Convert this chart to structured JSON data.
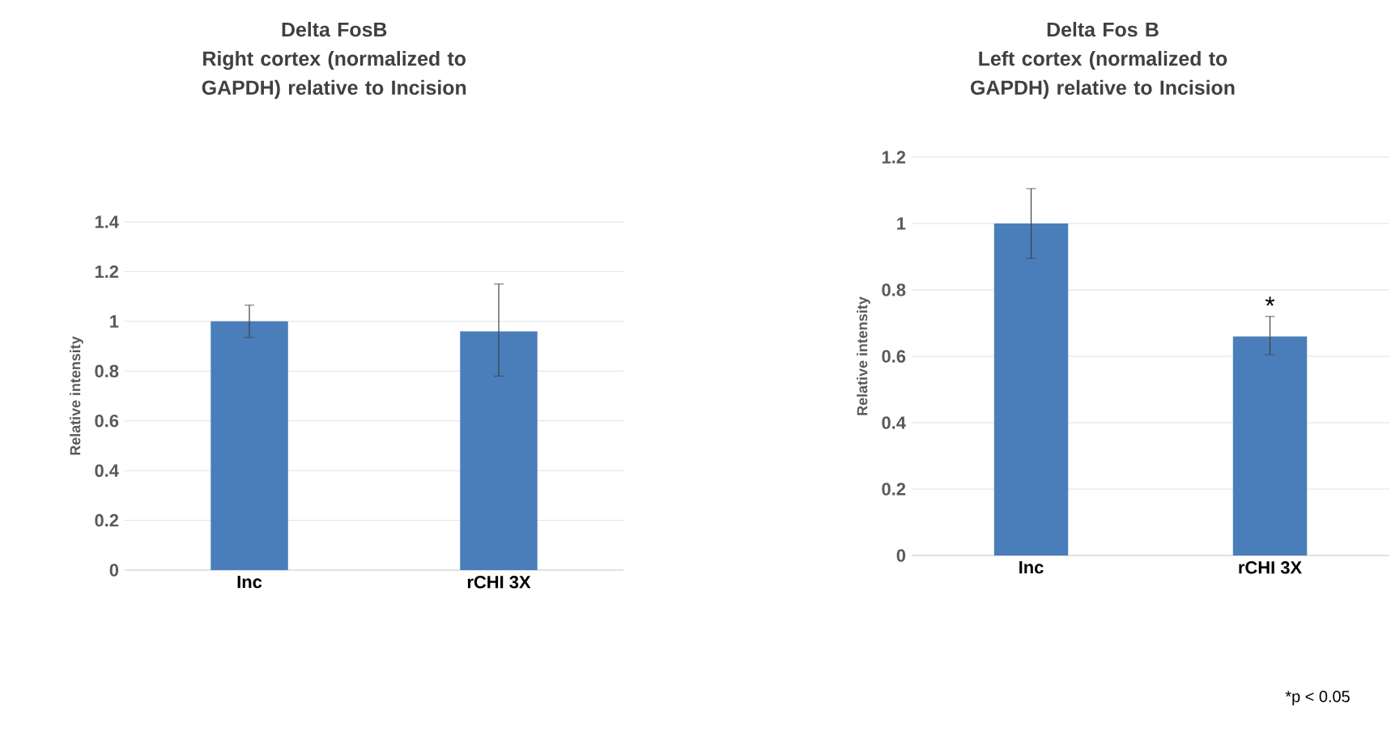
{
  "chart_data": [
    {
      "type": "bar",
      "title": "Delta FosB",
      "subtitle": "Right cortex (normalized to GAPDH) relative to Incision",
      "ylabel": "Relative intensity",
      "categories": [
        "Inc",
        "rCHI 3X"
      ],
      "values": [
        1.0,
        0.96
      ],
      "errors": [
        0.065,
        [
          0.78,
          1.15
        ]
      ],
      "color": "#4a7ebb",
      "ylim": [
        0,
        1.4
      ],
      "yticks": [
        0,
        0.2,
        0.4,
        0.6,
        0.8,
        1,
        1.2,
        1.4
      ],
      "grid": "y"
    },
    {
      "type": "bar",
      "title": "Delta Fos B",
      "subtitle": "Left cortex (normalized to GAPDH) relative to Incision",
      "ylabel": "Relative intensity",
      "categories": [
        "Inc",
        "rCHI 3X"
      ],
      "values": [
        1.0,
        0.66
      ],
      "errors": [
        0.105,
        [
          0.605,
          0.72
        ]
      ],
      "color": "#4a7ebb",
      "ylim": [
        0,
        1.2
      ],
      "yticks": [
        0,
        0.2,
        0.4,
        0.6,
        0.8,
        1,
        1.2
      ],
      "grid": "y",
      "annotations": [
        "*",
        "*p < 0.05"
      ]
    }
  ]
}
